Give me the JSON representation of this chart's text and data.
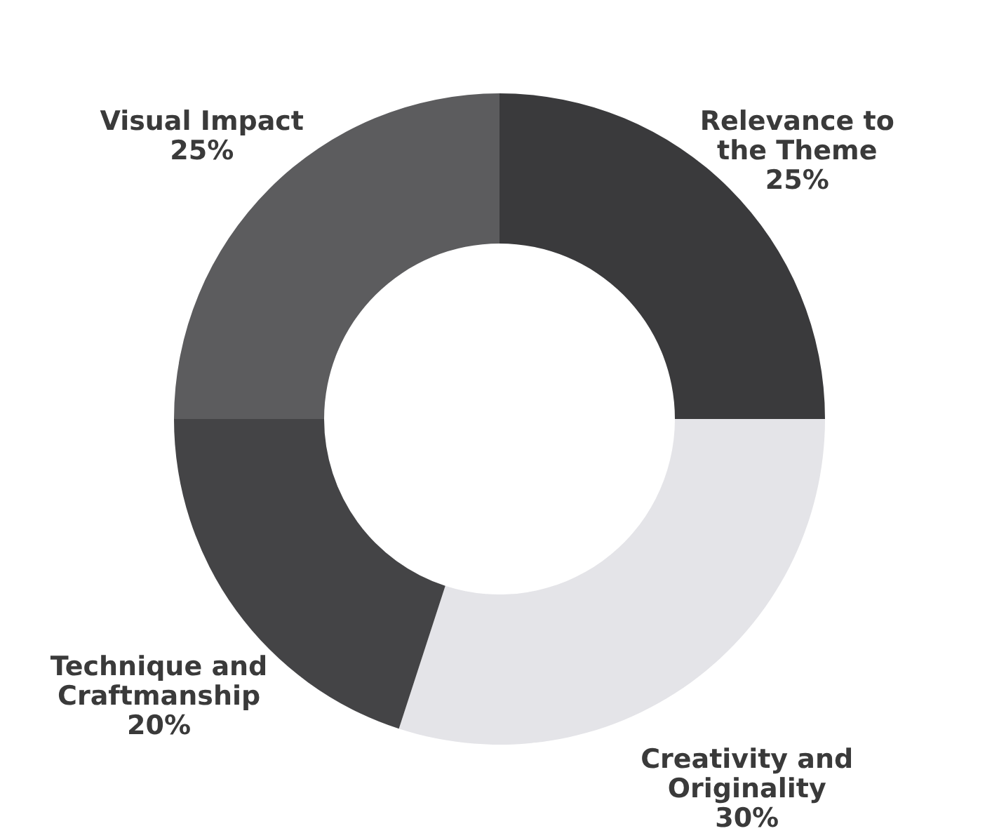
{
  "chart_data": {
    "type": "donut",
    "categories": [
      "Relevance to the Theme",
      "Creativity and Originality",
      "Technique and Craftmanship",
      "Visual Impact"
    ],
    "values": [
      25,
      30,
      20,
      25
    ],
    "value_labels": [
      "25%",
      "30%",
      "20%",
      "25%"
    ],
    "colors": [
      "#3a3a3c",
      "#e4e4e8",
      "#444446",
      "#5c5c5e"
    ],
    "legend": false
  }
}
